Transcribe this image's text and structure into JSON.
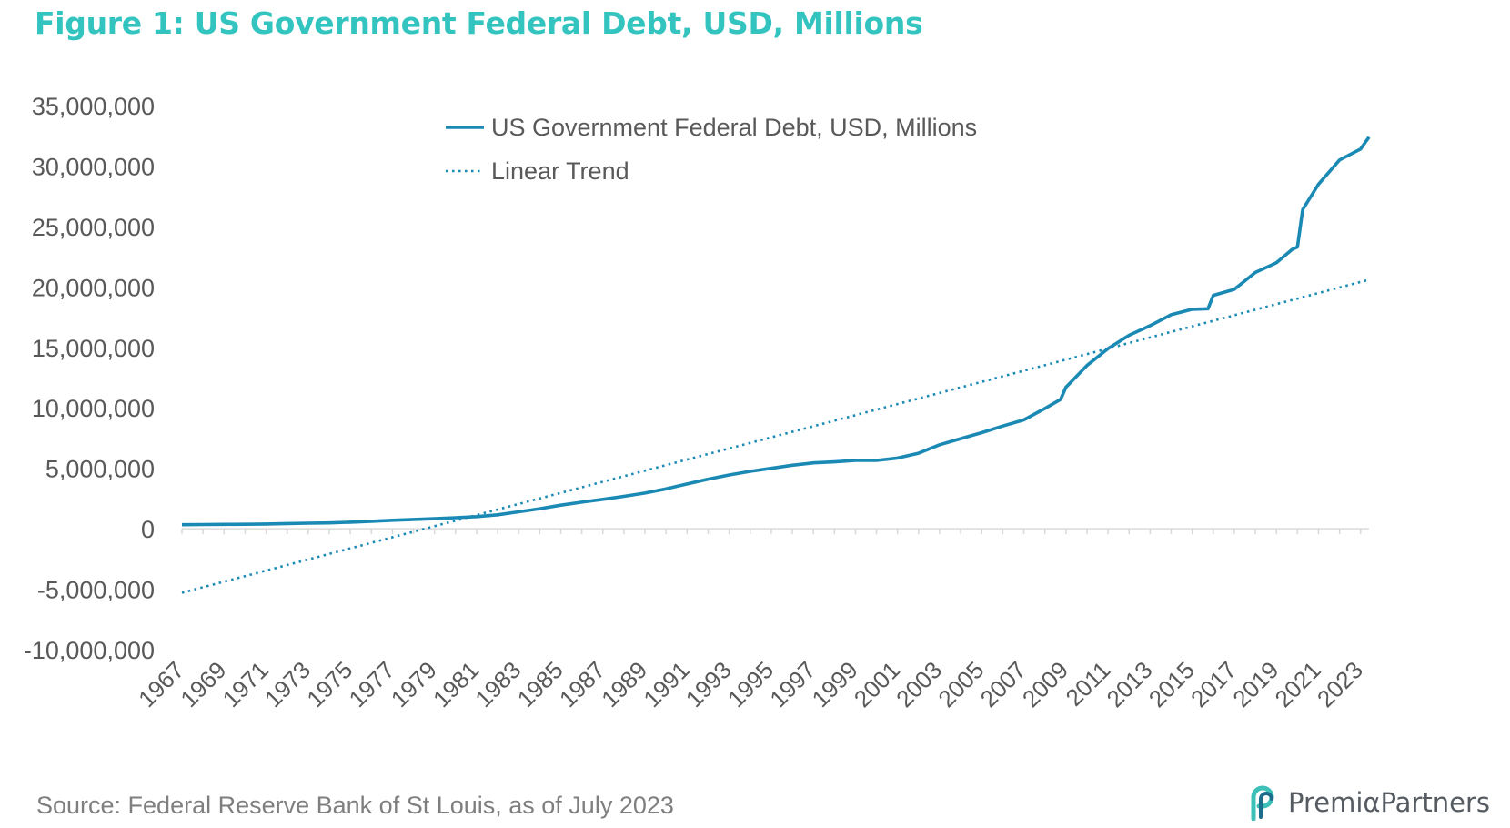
{
  "title": "Figure 1: US Government Federal Debt, USD, Millions",
  "source": "Source: Federal Reserve Bank of St Louis, as of July 2023",
  "logo": {
    "text": "PremiαPartners",
    "icon": "premia-partners-logo-icon"
  },
  "colors": {
    "title": "#33c4c0",
    "series": "#1a8ab5",
    "trend": "#1a8ab5",
    "axis_text": "#595959",
    "axis_line": "#d9d9d9"
  },
  "chart_data": {
    "type": "line",
    "title": "Figure 1: US Government Federal Debt, USD, Millions",
    "xlabel": "",
    "ylabel": "",
    "ylim": [
      -10000000,
      35000000
    ],
    "y_ticks": [
      35000000,
      30000000,
      25000000,
      20000000,
      15000000,
      10000000,
      5000000,
      0,
      -5000000,
      -10000000
    ],
    "y_tick_labels": [
      "35,000,000",
      "30,000,000",
      "25,000,000",
      "20,000,000",
      "15,000,000",
      "10,000,000",
      "5,000,000",
      "0",
      "-5,000,000",
      "-10,000,000"
    ],
    "x_tick_labels": [
      "1967",
      "1969",
      "1971",
      "1973",
      "1975",
      "1977",
      "1979",
      "1981",
      "1983",
      "1985",
      "1987",
      "1989",
      "1991",
      "1993",
      "1995",
      "1997",
      "1999",
      "2001",
      "2003",
      "2005",
      "2007",
      "2009",
      "2011",
      "2013",
      "2015",
      "2017",
      "2019",
      "2021",
      "2023"
    ],
    "legend_position": "top-center",
    "grid": false,
    "series": [
      {
        "name": "US Government Federal Debt, USD, Millions",
        "style": "solid",
        "x": [
          1967,
          1968,
          1969,
          1970,
          1971,
          1972,
          1973,
          1974,
          1975,
          1976,
          1977,
          1978,
          1979,
          1980,
          1981,
          1982,
          1983,
          1984,
          1985,
          1986,
          1987,
          1988,
          1989,
          1990,
          1991,
          1992,
          1993,
          1994,
          1995,
          1996,
          1997,
          1998,
          1999,
          2000,
          2001,
          2002,
          2003,
          2004,
          2005,
          2006,
          2007,
          2008,
          2008.75,
          2009,
          2010,
          2011,
          2012,
          2013,
          2014,
          2015,
          2015.75,
          2016,
          2017,
          2018,
          2019,
          2019.75,
          2020,
          2020.25,
          2021,
          2022,
          2023,
          2023.4
        ],
        "values": [
          330000,
          350000,
          360000,
          370000,
          390000,
          430000,
          460000,
          480000,
          540000,
          620000,
          700000,
          770000,
          830000,
          910000,
          1000000,
          1150000,
          1400000,
          1660000,
          1950000,
          2200000,
          2430000,
          2680000,
          2950000,
          3300000,
          3700000,
          4100000,
          4450000,
          4750000,
          5000000,
          5250000,
          5450000,
          5530000,
          5650000,
          5650000,
          5850000,
          6250000,
          6950000,
          7450000,
          7950000,
          8500000,
          9000000,
          9950000,
          10700000,
          11700000,
          13500000,
          14900000,
          16000000,
          16800000,
          17700000,
          18150000,
          18200000,
          19300000,
          19800000,
          21200000,
          22000000,
          23100000,
          23300000,
          26400000,
          28500000,
          30500000,
          31400000,
          32400000
        ]
      },
      {
        "name": "Linear Trend",
        "style": "dotted",
        "x": [
          1967,
          2023.4
        ],
        "values": [
          -5300000,
          20600000
        ]
      }
    ]
  }
}
